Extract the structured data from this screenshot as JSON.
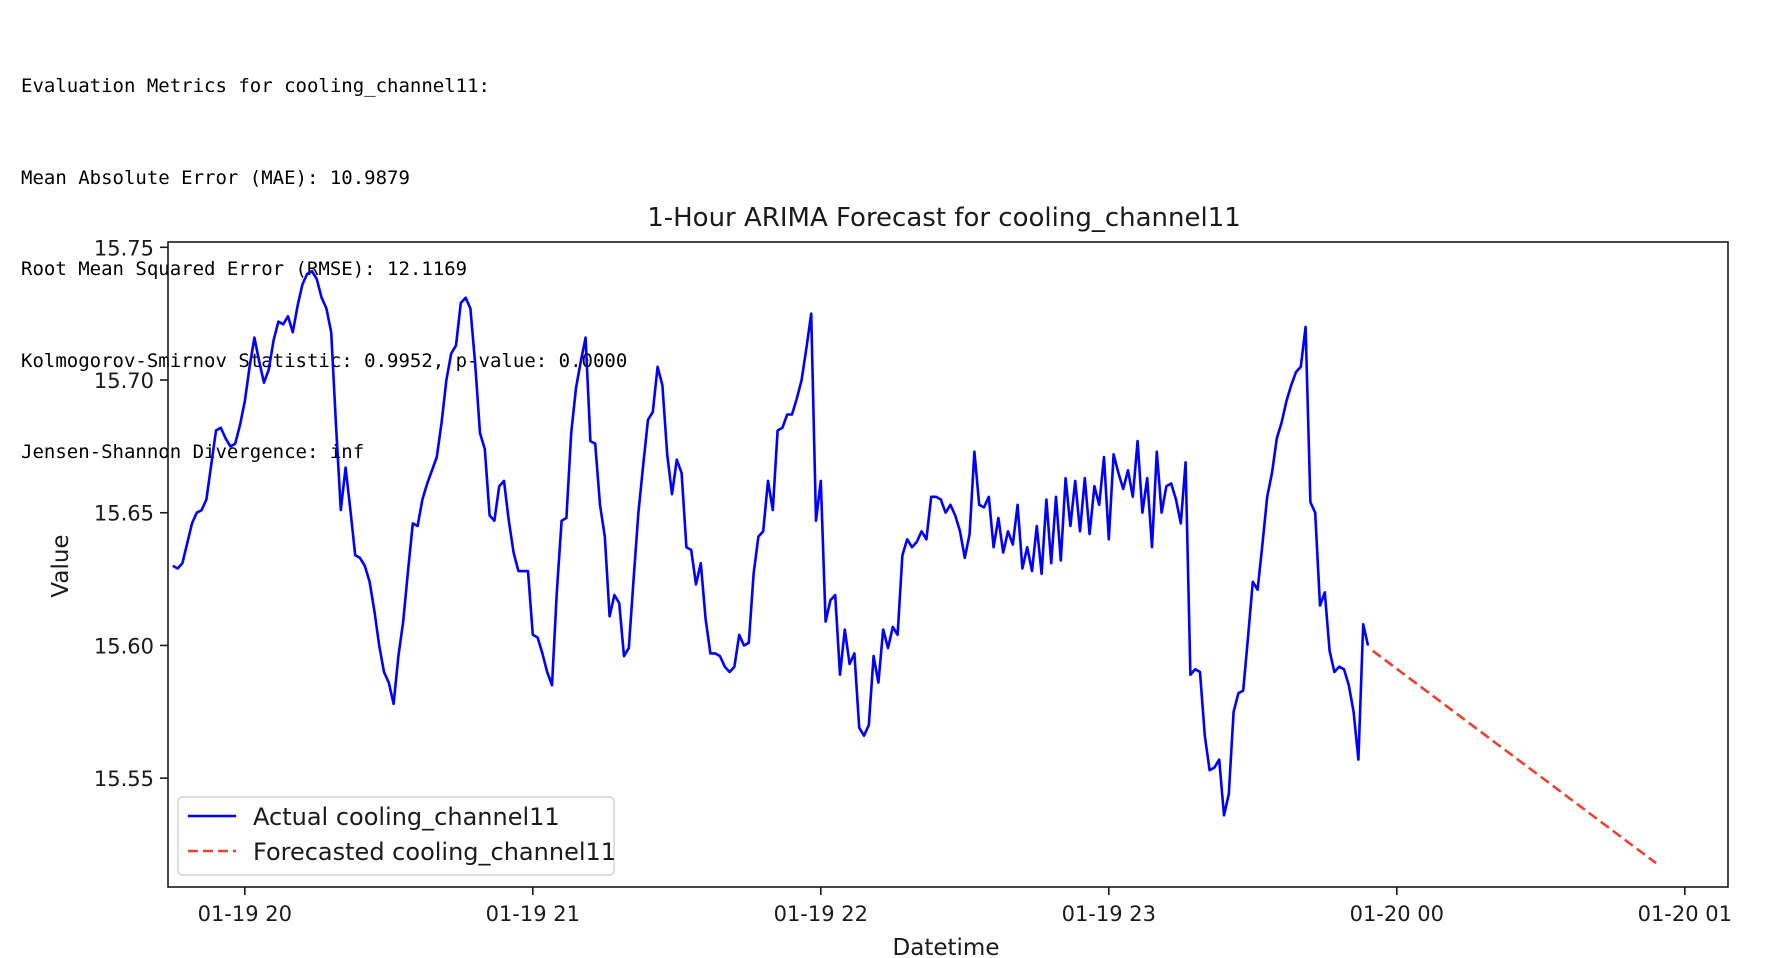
{
  "metrics": {
    "header": "Evaluation Metrics for cooling_channel11:",
    "mae": "Mean Absolute Error (MAE): 10.9879",
    "rmse": "Root Mean Squared Error (RMSE): 12.1169",
    "ks": "Kolmogorov-Smirnov Statistic: 0.9952, p-value: 0.0000",
    "js": "Jensen-Shannon Divergence: inf"
  },
  "chart_data": {
    "type": "line",
    "title": "1-Hour ARIMA Forecast for cooling_channel11",
    "xlabel": "Datetime",
    "ylabel": "Value",
    "x_unit": "datetime (HH:MM on 2024-01-19 / 01-20)",
    "xlim": [
      "01-19 19:44",
      "01-20 01:09"
    ],
    "ylim": [
      15.509,
      15.752
    ],
    "x_ticks": [
      {
        "value": "01-19 20:00",
        "label": "01-19 20"
      },
      {
        "value": "01-19 21:00",
        "label": "01-19 21"
      },
      {
        "value": "01-19 22:00",
        "label": "01-19 22"
      },
      {
        "value": "01-19 23:00",
        "label": "01-19 23"
      },
      {
        "value": "01-20 00:00",
        "label": "01-20 00"
      },
      {
        "value": "01-20 01:00",
        "label": "01-20 01"
      }
    ],
    "y_ticks": [
      15.55,
      15.6,
      15.65,
      15.7,
      15.75
    ],
    "y_tick_labels": [
      "15.55",
      "15.60",
      "15.65",
      "15.70",
      "15.75"
    ],
    "grid": false,
    "legend_position": "lower-left",
    "series": [
      {
        "name": "Actual cooling_channel11",
        "color": "#0000ff",
        "style": "solid",
        "points": [
          [
            "01-19 19:45",
            15.63
          ],
          [
            "01-19 19:46",
            15.629
          ],
          [
            "01-19 19:47",
            15.631
          ],
          [
            "01-19 19:49",
            15.646
          ],
          [
            "01-19 19:50",
            15.65
          ],
          [
            "01-19 19:51",
            15.651
          ],
          [
            "01-19 19:52",
            15.655
          ],
          [
            "01-19 19:53",
            15.668
          ],
          [
            "01-19 19:54",
            15.681
          ],
          [
            "01-19 19:55",
            15.682
          ],
          [
            "01-19 19:56",
            15.678
          ],
          [
            "01-19 19:57",
            15.675
          ],
          [
            "01-19 19:58",
            15.676
          ],
          [
            "01-19 19:59",
            15.683
          ],
          [
            "01-19 20:00",
            15.692
          ],
          [
            "01-19 20:01",
            15.705
          ],
          [
            "01-19 20:02",
            15.716
          ],
          [
            "01-19 20:03",
            15.707
          ],
          [
            "01-19 20:04",
            15.699
          ],
          [
            "01-19 20:05",
            15.704
          ],
          [
            "01-19 20:06",
            15.715
          ],
          [
            "01-19 20:07",
            15.722
          ],
          [
            "01-19 20:08",
            15.721
          ],
          [
            "01-19 20:09",
            15.724
          ],
          [
            "01-19 20:10",
            15.718
          ],
          [
            "01-19 20:11",
            15.728
          ],
          [
            "01-19 20:12",
            15.736
          ],
          [
            "01-19 20:13",
            15.74
          ],
          [
            "01-19 20:14",
            15.741
          ],
          [
            "01-19 20:15",
            15.738
          ],
          [
            "01-19 20:16",
            15.731
          ],
          [
            "01-19 20:17",
            15.727
          ],
          [
            "01-19 20:18",
            15.718
          ],
          [
            "01-19 20:19",
            15.683
          ],
          [
            "01-19 20:20",
            15.651
          ],
          [
            "01-19 20:21",
            15.667
          ],
          [
            "01-19 20:22",
            15.651
          ],
          [
            "01-19 20:23",
            15.634
          ],
          [
            "01-19 20:24",
            15.633
          ],
          [
            "01-19 20:25",
            15.63
          ],
          [
            "01-19 20:26",
            15.624
          ],
          [
            "01-19 20:27",
            15.613
          ],
          [
            "01-19 20:28",
            15.6
          ],
          [
            "01-19 20:29",
            15.59
          ],
          [
            "01-19 20:30",
            15.586
          ],
          [
            "01-19 20:31",
            15.578
          ],
          [
            "01-19 20:32",
            15.596
          ],
          [
            "01-19 20:33",
            15.609
          ],
          [
            "01-19 20:34",
            15.628
          ],
          [
            "01-19 20:35",
            15.646
          ],
          [
            "01-19 20:36",
            15.645
          ],
          [
            "01-19 20:37",
            15.655
          ],
          [
            "01-19 20:38",
            15.661
          ],
          [
            "01-19 20:39",
            15.666
          ],
          [
            "01-19 20:40",
            15.671
          ],
          [
            "01-19 20:41",
            15.684
          ],
          [
            "01-19 20:42",
            15.7
          ],
          [
            "01-19 20:43",
            15.71
          ],
          [
            "01-19 20:44",
            15.713
          ],
          [
            "01-19 20:45",
            15.729
          ],
          [
            "01-19 20:46",
            15.731
          ],
          [
            "01-19 20:47",
            15.727
          ],
          [
            "01-19 20:48",
            15.706
          ],
          [
            "01-19 20:49",
            15.68
          ],
          [
            "01-19 20:50",
            15.674
          ],
          [
            "01-19 20:51",
            15.649
          ],
          [
            "01-19 20:52",
            15.647
          ],
          [
            "01-19 20:53",
            15.66
          ],
          [
            "01-19 20:54",
            15.662
          ],
          [
            "01-19 20:55",
            15.647
          ],
          [
            "01-19 20:56",
            15.635
          ],
          [
            "01-19 20:57",
            15.628
          ],
          [
            "01-19 20:58",
            15.628
          ],
          [
            "01-19 20:59",
            15.628
          ],
          [
            "01-19 21:00",
            15.604
          ],
          [
            "01-19 21:01",
            15.603
          ],
          [
            "01-19 21:02",
            15.597
          ],
          [
            "01-19 21:03",
            15.59
          ],
          [
            "01-19 21:04",
            15.585
          ],
          [
            "01-19 21:05",
            15.62
          ],
          [
            "01-19 21:06",
            15.647
          ],
          [
            "01-19 21:07",
            15.648
          ],
          [
            "01-19 21:08",
            15.68
          ],
          [
            "01-19 21:09",
            15.697
          ],
          [
            "01-19 21:10",
            15.707
          ],
          [
            "01-19 21:11",
            15.716
          ],
          [
            "01-19 21:12",
            15.677
          ],
          [
            "01-19 21:13",
            15.676
          ],
          [
            "01-19 21:14",
            15.653
          ],
          [
            "01-19 21:15",
            15.641
          ],
          [
            "01-19 21:16",
            15.611
          ],
          [
            "01-19 21:17",
            15.619
          ],
          [
            "01-19 21:18",
            15.616
          ],
          [
            "01-19 21:19",
            15.596
          ],
          [
            "01-19 21:20",
            15.599
          ],
          [
            "01-19 21:21",
            15.625
          ],
          [
            "01-19 21:22",
            15.65
          ],
          [
            "01-19 21:23",
            15.668
          ],
          [
            "01-19 21:24",
            15.685
          ],
          [
            "01-19 21:25",
            15.688
          ],
          [
            "01-19 21:26",
            15.705
          ],
          [
            "01-19 21:27",
            15.698
          ],
          [
            "01-19 21:28",
            15.672
          ],
          [
            "01-19 21:29",
            15.657
          ],
          [
            "01-19 21:30",
            15.67
          ],
          [
            "01-19 21:31",
            15.665
          ],
          [
            "01-19 21:32",
            15.637
          ],
          [
            "01-19 21:33",
            15.636
          ],
          [
            "01-19 21:34",
            15.623
          ],
          [
            "01-19 21:35",
            15.631
          ],
          [
            "01-19 21:36",
            15.61
          ],
          [
            "01-19 21:37",
            15.597
          ],
          [
            "01-19 21:38",
            15.597
          ],
          [
            "01-19 21:39",
            15.596
          ],
          [
            "01-19 21:40",
            15.592
          ],
          [
            "01-19 21:41",
            15.59
          ],
          [
            "01-19 21:42",
            15.592
          ],
          [
            "01-19 21:43",
            15.604
          ],
          [
            "01-19 21:44",
            15.6
          ],
          [
            "01-19 21:45",
            15.601
          ],
          [
            "01-19 21:46",
            15.627
          ],
          [
            "01-19 21:47",
            15.641
          ],
          [
            "01-19 21:48",
            15.643
          ],
          [
            "01-19 21:49",
            15.662
          ],
          [
            "01-19 21:50",
            15.651
          ],
          [
            "01-19 21:51",
            15.681
          ],
          [
            "01-19 21:52",
            15.682
          ],
          [
            "01-19 21:53",
            15.687
          ],
          [
            "01-19 21:54",
            15.687
          ],
          [
            "01-19 21:55",
            15.693
          ],
          [
            "01-19 21:56",
            15.7
          ],
          [
            "01-19 21:57",
            15.712
          ],
          [
            "01-19 21:58",
            15.725
          ],
          [
            "01-19 21:59",
            15.647
          ],
          [
            "01-19 22:00",
            15.662
          ],
          [
            "01-19 22:01",
            15.609
          ],
          [
            "01-19 22:02",
            15.617
          ],
          [
            "01-19 22:03",
            15.619
          ],
          [
            "01-19 22:04",
            15.589
          ],
          [
            "01-19 22:05",
            15.606
          ],
          [
            "01-19 22:06",
            15.593
          ],
          [
            "01-19 22:07",
            15.597
          ],
          [
            "01-19 22:08",
            15.569
          ],
          [
            "01-19 22:09",
            15.566
          ],
          [
            "01-19 22:10",
            15.57
          ],
          [
            "01-19 22:11",
            15.596
          ],
          [
            "01-19 22:12",
            15.586
          ],
          [
            "01-19 22:13",
            15.606
          ],
          [
            "01-19 22:14",
            15.599
          ],
          [
            "01-19 22:15",
            15.607
          ],
          [
            "01-19 22:16",
            15.604
          ],
          [
            "01-19 22:17",
            15.634
          ],
          [
            "01-19 22:18",
            15.64
          ],
          [
            "01-19 22:19",
            15.637
          ],
          [
            "01-19 22:20",
            15.639
          ],
          [
            "01-19 22:21",
            15.643
          ],
          [
            "01-19 22:22",
            15.64
          ],
          [
            "01-19 22:23",
            15.656
          ],
          [
            "01-19 22:24",
            15.656
          ],
          [
            "01-19 22:25",
            15.655
          ],
          [
            "01-19 22:26",
            15.65
          ],
          [
            "01-19 22:27",
            15.653
          ],
          [
            "01-19 22:28",
            15.649
          ],
          [
            "01-19 22:29",
            15.643
          ],
          [
            "01-19 22:30",
            15.633
          ],
          [
            "01-19 22:31",
            15.642
          ],
          [
            "01-19 22:32",
            15.673
          ],
          [
            "01-19 22:33",
            15.653
          ],
          [
            "01-19 22:34",
            15.652
          ],
          [
            "01-19 22:35",
            15.656
          ],
          [
            "01-19 22:36",
            15.637
          ],
          [
            "01-19 22:37",
            15.648
          ],
          [
            "01-19 22:38",
            15.635
          ],
          [
            "01-19 22:39",
            15.643
          ],
          [
            "01-19 22:40",
            15.638
          ],
          [
            "01-19 22:41",
            15.653
          ],
          [
            "01-19 22:42",
            15.629
          ],
          [
            "01-19 22:43",
            15.637
          ],
          [
            "01-19 22:44",
            15.628
          ],
          [
            "01-19 22:45",
            15.645
          ],
          [
            "01-19 22:46",
            15.627
          ],
          [
            "01-19 22:47",
            15.655
          ],
          [
            "01-19 22:48",
            15.631
          ],
          [
            "01-19 22:49",
            15.656
          ],
          [
            "01-19 22:50",
            15.632
          ],
          [
            "01-19 22:51",
            15.663
          ],
          [
            "01-19 22:52",
            15.645
          ],
          [
            "01-19 22:53",
            15.662
          ],
          [
            "01-19 22:54",
            15.643
          ],
          [
            "01-19 22:55",
            15.663
          ],
          [
            "01-19 22:56",
            15.642
          ],
          [
            "01-19 22:57",
            15.66
          ],
          [
            "01-19 22:58",
            15.653
          ],
          [
            "01-19 22:59",
            15.671
          ],
          [
            "01-19 23:00",
            15.64
          ],
          [
            "01-19 23:01",
            15.672
          ],
          [
            "01-19 23:02",
            15.665
          ],
          [
            "01-19 23:03",
            15.659
          ],
          [
            "01-19 23:04",
            15.666
          ],
          [
            "01-19 23:05",
            15.656
          ],
          [
            "01-19 23:06",
            15.677
          ],
          [
            "01-19 23:07",
            15.65
          ],
          [
            "01-19 23:08",
            15.663
          ],
          [
            "01-19 23:09",
            15.637
          ],
          [
            "01-19 23:10",
            15.673
          ],
          [
            "01-19 23:11",
            15.65
          ],
          [
            "01-19 23:12",
            15.66
          ],
          [
            "01-19 23:13",
            15.661
          ],
          [
            "01-19 23:14",
            15.655
          ],
          [
            "01-19 23:15",
            15.646
          ],
          [
            "01-19 23:16",
            15.669
          ],
          [
            "01-19 23:17",
            15.589
          ],
          [
            "01-19 23:18",
            15.591
          ],
          [
            "01-19 23:19",
            15.59
          ],
          [
            "01-19 23:20",
            15.566
          ],
          [
            "01-19 23:21",
            15.553
          ],
          [
            "01-19 23:22",
            15.554
          ],
          [
            "01-19 23:23",
            15.557
          ],
          [
            "01-19 23:24",
            15.536
          ],
          [
            "01-19 23:25",
            15.544
          ],
          [
            "01-19 23:26",
            15.575
          ],
          [
            "01-19 23:27",
            15.582
          ],
          [
            "01-19 23:28",
            15.583
          ],
          [
            "01-19 23:29",
            15.603
          ],
          [
            "01-19 23:30",
            15.624
          ],
          [
            "01-19 23:31",
            15.621
          ],
          [
            "01-19 23:32",
            15.638
          ],
          [
            "01-19 23:33",
            15.656
          ],
          [
            "01-19 23:34",
            15.665
          ],
          [
            "01-19 23:35",
            15.678
          ],
          [
            "01-19 23:36",
            15.684
          ],
          [
            "01-19 23:37",
            15.692
          ],
          [
            "01-19 23:38",
            15.698
          ],
          [
            "01-19 23:39",
            15.703
          ],
          [
            "01-19 23:40",
            15.705
          ],
          [
            "01-19 23:41",
            15.72
          ],
          [
            "01-19 23:42",
            15.654
          ],
          [
            "01-19 23:43",
            15.65
          ],
          [
            "01-19 23:44",
            15.615
          ],
          [
            "01-19 23:45",
            15.62
          ],
          [
            "01-19 23:46",
            15.598
          ],
          [
            "01-19 23:47",
            15.59
          ],
          [
            "01-19 23:48",
            15.592
          ],
          [
            "01-19 23:49",
            15.591
          ],
          [
            "01-19 23:50",
            15.585
          ],
          [
            "01-19 23:51",
            15.575
          ],
          [
            "01-19 23:52",
            15.557
          ],
          [
            "01-19 23:53",
            15.608
          ],
          [
            "01-19 23:54",
            15.6
          ]
        ]
      },
      {
        "name": "Forecasted cooling_channel11",
        "color": "#e8412c",
        "style": "dashed",
        "points": [
          [
            "01-19 23:55",
            15.598
          ],
          [
            "01-20 00:54",
            15.518
          ]
        ]
      }
    ]
  }
}
